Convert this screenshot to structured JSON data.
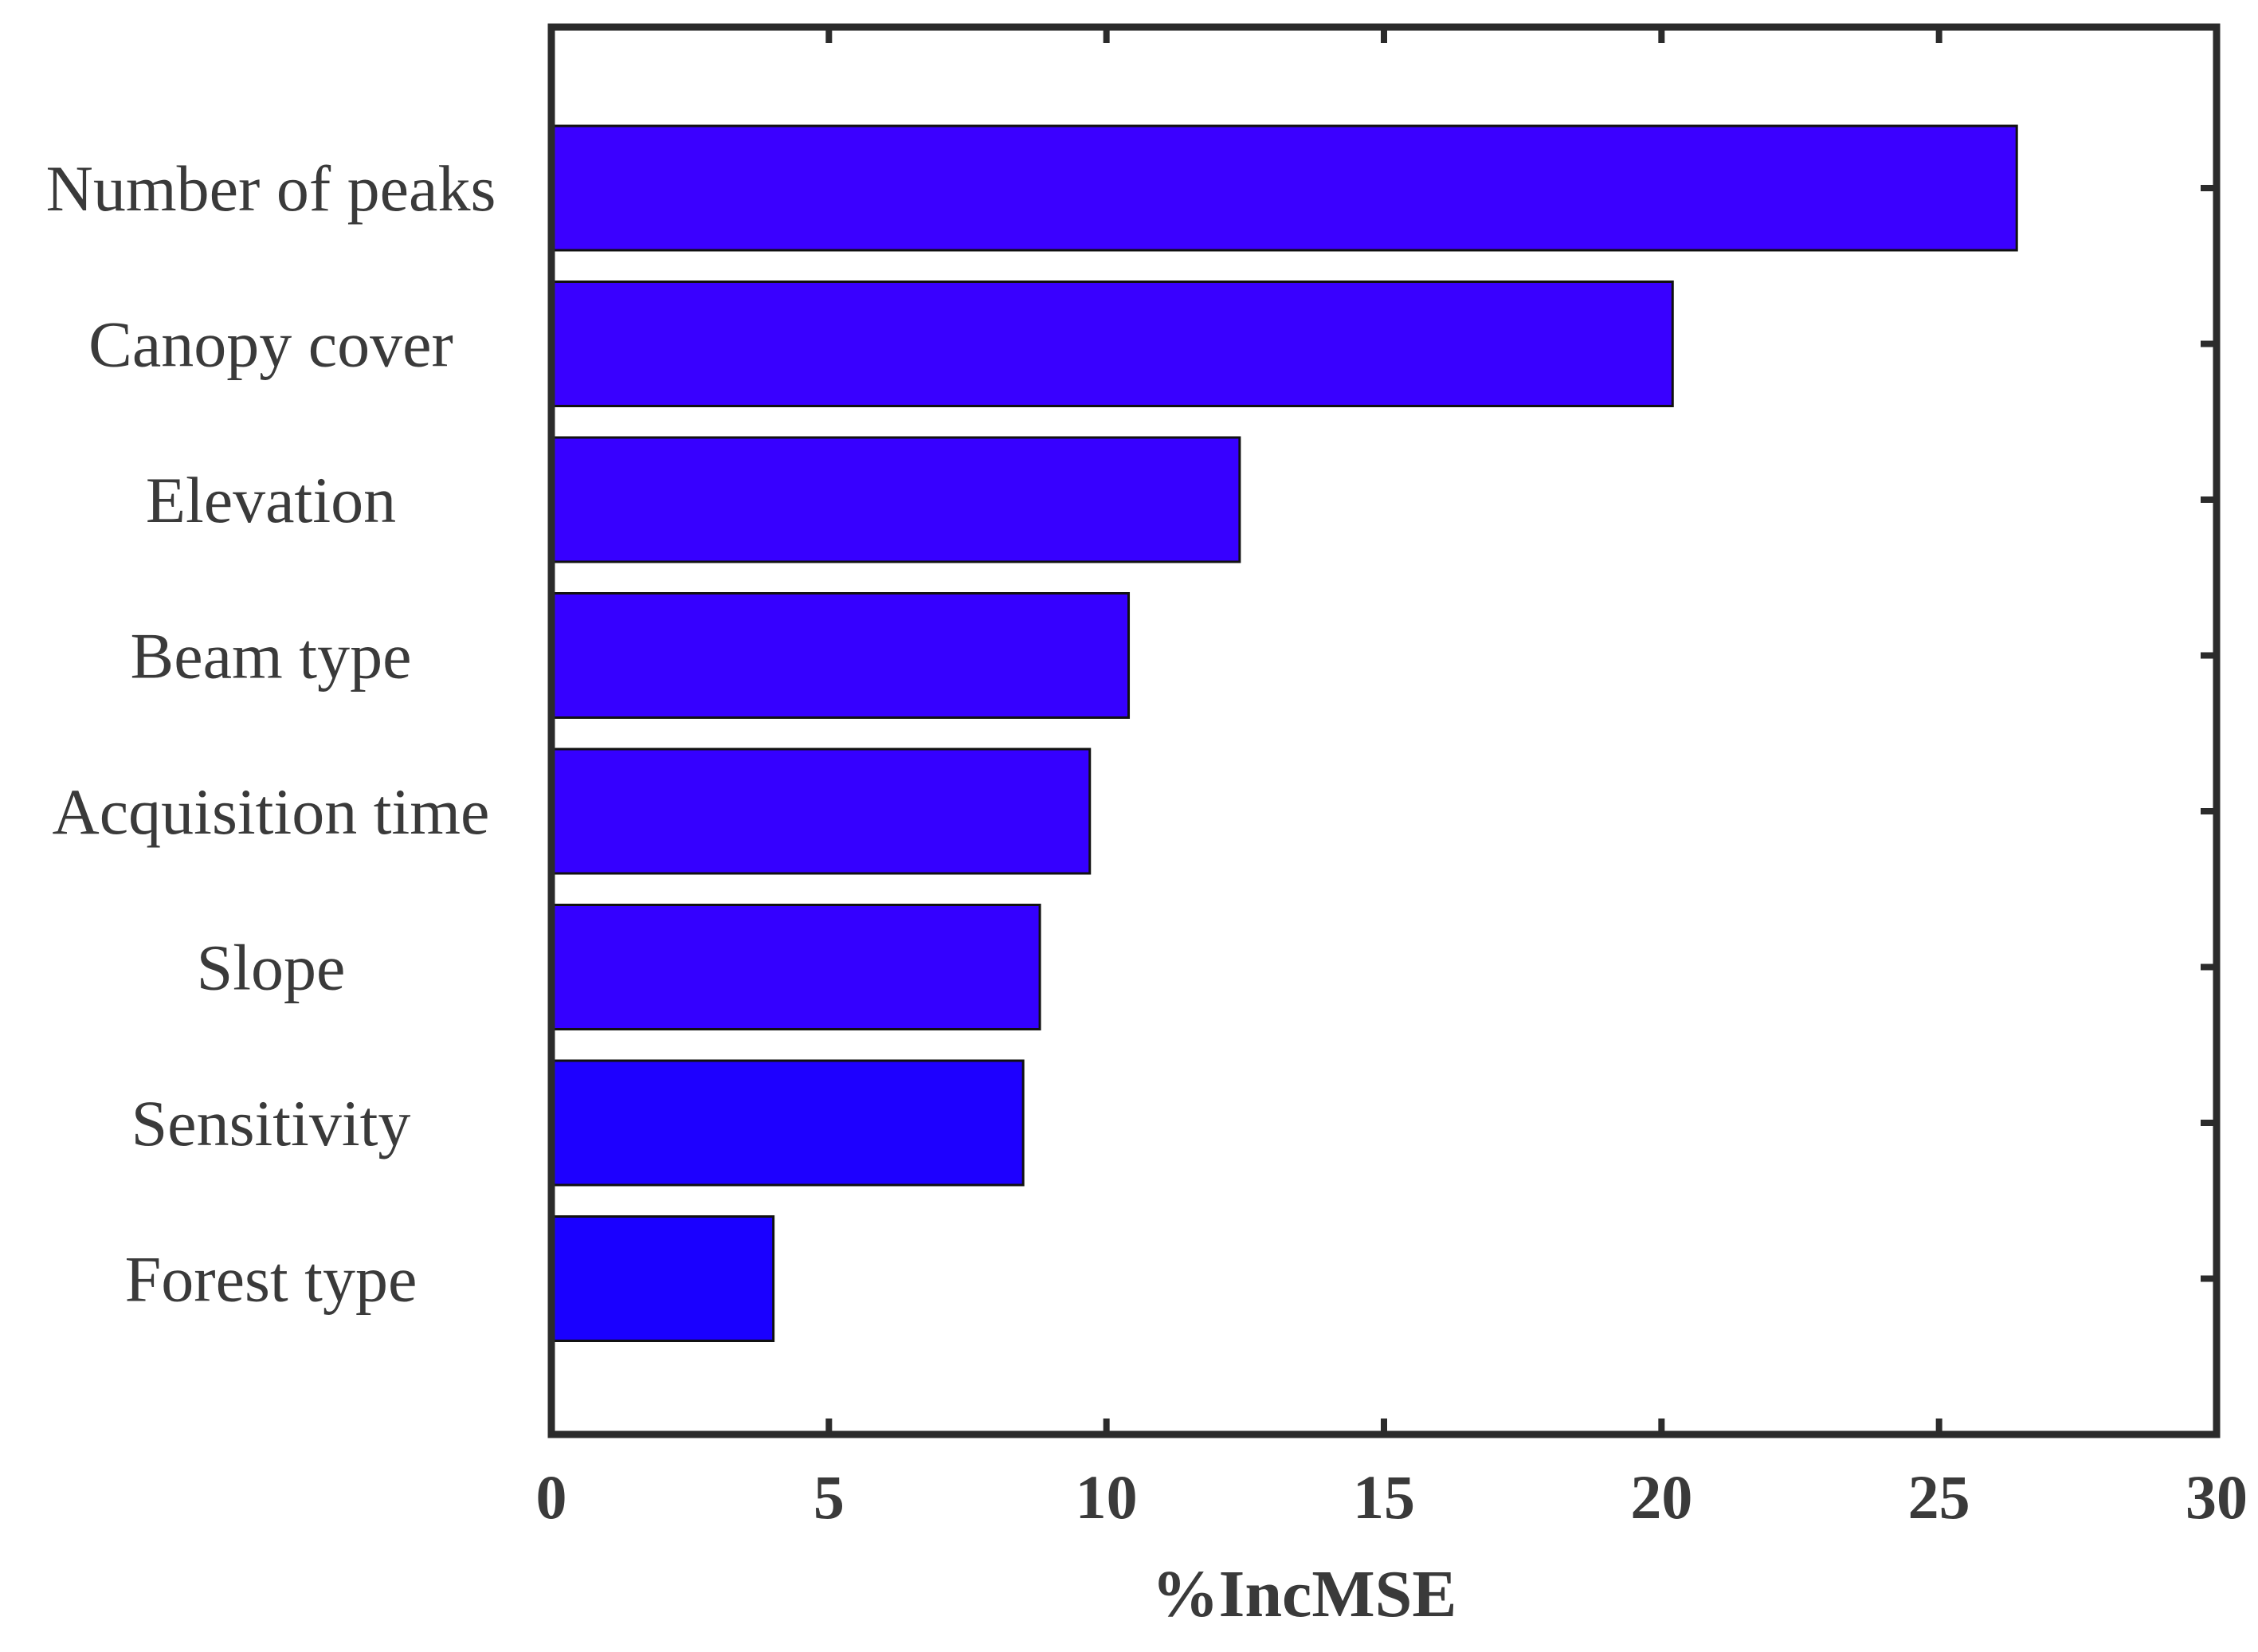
{
  "chart_data": {
    "type": "bar",
    "orientation": "horizontal",
    "categories": [
      "Number of peaks",
      "Canopy cover",
      "Elevation",
      "Beam type",
      "Acquisition time",
      "Slope",
      "Sensitivity",
      "Forest type"
    ],
    "values": [
      26.4,
      20.2,
      12.4,
      10.4,
      9.7,
      8.8,
      8.5,
      4.0
    ],
    "colors": [
      "#3b00ff",
      "#3900ff",
      "#3700ff",
      "#3600ff",
      "#3500ff",
      "#3400ff",
      "#1e00ff",
      "#1a00ff"
    ],
    "xlabel": "%IncMSE",
    "ylabel": "",
    "xlim": [
      0,
      30
    ],
    "xticks": [
      0,
      5,
      10,
      15,
      20,
      25,
      30
    ],
    "grid": false,
    "legend": "none"
  }
}
